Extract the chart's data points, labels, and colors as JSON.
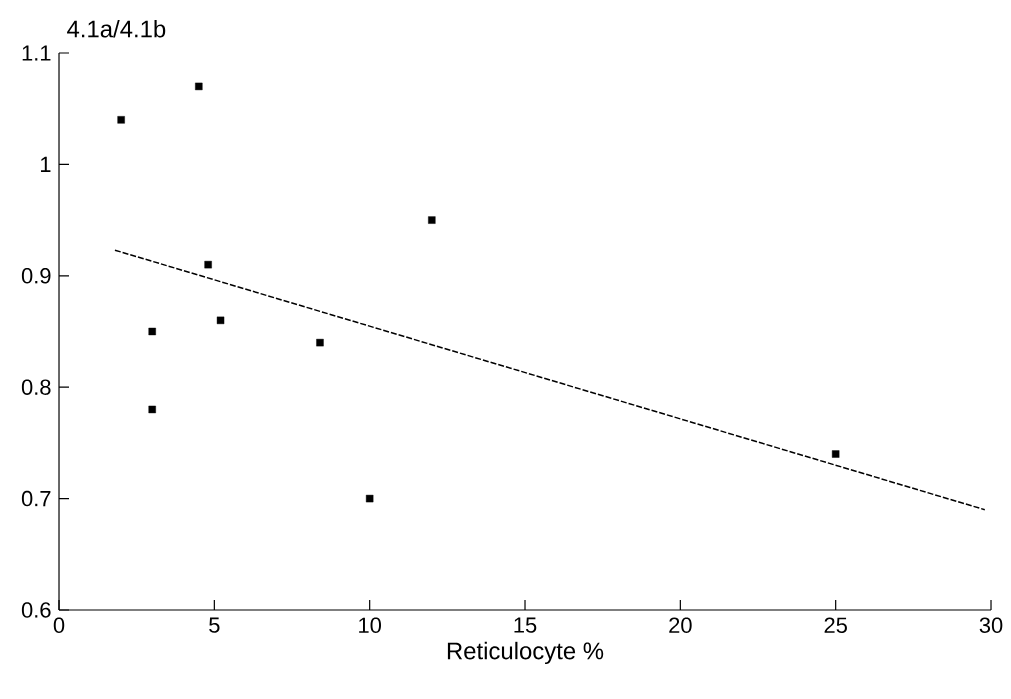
{
  "chart_data": {
    "type": "scatter",
    "xlabel": "Reticulocyte %",
    "ylabel": "4.1a/4.1b",
    "xlim": [
      0,
      30
    ],
    "ylim": [
      0.6,
      1.1
    ],
    "xticks": [
      0,
      5,
      10,
      15,
      20,
      25,
      30
    ],
    "yticks": [
      0.6,
      0.7,
      0.8,
      0.9,
      1,
      1.1
    ],
    "series": [
      {
        "color": "#000000",
        "marker": "square",
        "x": [
          2.0,
          3.0,
          3.0,
          4.5,
          4.8,
          5.2,
          8.4,
          10.0,
          12.0,
          25.0
        ],
        "values": [
          1.04,
          0.85,
          0.78,
          1.07,
          0.91,
          0.86,
          0.84,
          0.7,
          0.95,
          0.74
        ]
      },
      {
        "type": "line",
        "color": "#000000",
        "marker": "none",
        "line_style": "dashed",
        "x": [
          1.8,
          29.8
        ],
        "values": [
          0.923,
          0.69
        ]
      }
    ]
  }
}
